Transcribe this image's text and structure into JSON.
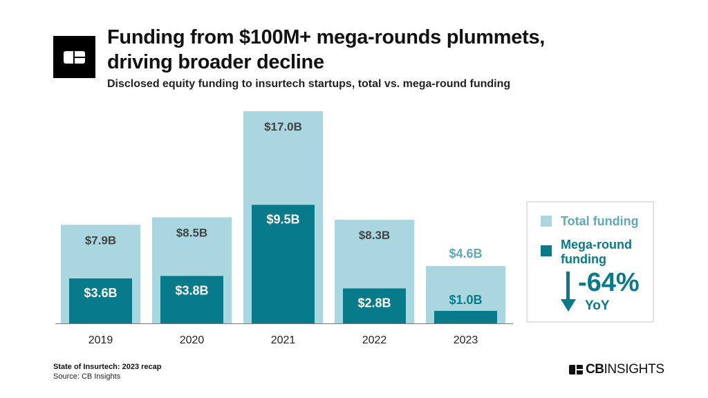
{
  "header": {
    "logo_text": "CB",
    "title": "Funding from $100M+ mega-rounds plummets, driving broader decline",
    "subtitle": "Disclosed equity funding to insurtech startups, total vs. mega-round funding"
  },
  "chart_data": {
    "type": "bar",
    "categories": [
      "2019",
      "2020",
      "2021",
      "2022",
      "2023"
    ],
    "series": [
      {
        "name": "Total funding",
        "values": [
          7.9,
          8.5,
          17.0,
          8.3,
          4.6
        ],
        "labels": [
          "$7.9B",
          "$8.5B",
          "$17.0B",
          "$8.3B",
          "$4.6B"
        ],
        "color": "#a9d6df"
      },
      {
        "name": "Mega-round funding",
        "values": [
          3.6,
          3.8,
          9.5,
          2.8,
          1.0
        ],
        "labels": [
          "$3.6B",
          "$3.8B",
          "$9.5B",
          "$2.8B",
          "$1.0B"
        ],
        "color": "#077b8a"
      }
    ],
    "ylim": [
      0,
      17.0
    ],
    "grid": false,
    "legend_position": "right",
    "overlap": true
  },
  "legend": {
    "total_label": "Total funding",
    "mega_label_1": "Mega-round",
    "mega_label_2": "funding",
    "change": "-64%",
    "change_unit": "YoY",
    "change_icon": "arrow-down-icon"
  },
  "colors": {
    "light": "#a9d6df",
    "dark": "#077b8a",
    "light_text": "#5faab6",
    "label_dark": "#444444"
  },
  "footer": {
    "report": "State of Insurtech: 2023 recap",
    "source": "Source: CB Insights",
    "brand_bold": "CB",
    "brand_rest": "INSIGHTS"
  }
}
